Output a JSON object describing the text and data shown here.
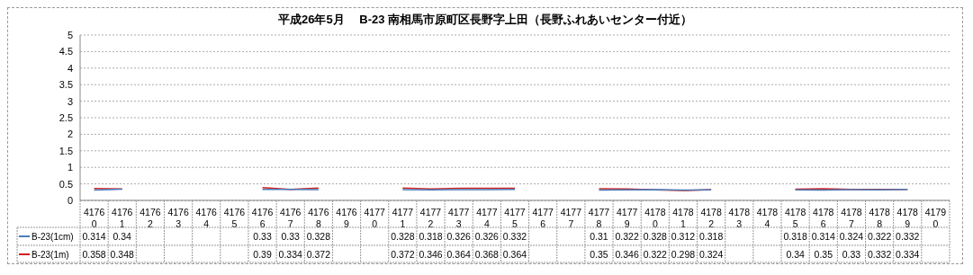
{
  "chart_data": {
    "type": "line",
    "title": "平成26年5月　 B-23 南相馬市原町区長野字上田（長野ふれあいセンター付近）",
    "categories": [
      "41760",
      "41761",
      "41762",
      "41763",
      "41764",
      "41765",
      "41766",
      "41767",
      "41768",
      "41769",
      "41770",
      "41771",
      "41772",
      "41773",
      "41774",
      "41775",
      "41776",
      "41777",
      "41778",
      "41779",
      "41780",
      "41781",
      "41782",
      "41783",
      "41784",
      "41785",
      "41786",
      "41787",
      "41788",
      "41789",
      "41790"
    ],
    "series": [
      {
        "name": "B-23(1cm)",
        "color": "#4a7ebb",
        "values": [
          0.314,
          0.34,
          null,
          null,
          null,
          null,
          0.33,
          0.33,
          0.328,
          null,
          null,
          0.328,
          0.318,
          0.326,
          0.326,
          0.332,
          null,
          null,
          0.31,
          0.322,
          0.328,
          0.312,
          0.318,
          null,
          null,
          0.318,
          0.314,
          0.324,
          0.322,
          0.332,
          null
        ]
      },
      {
        "name": "B-23(1m)",
        "color": "#d42020",
        "values": [
          0.358,
          0.348,
          null,
          null,
          null,
          null,
          0.39,
          0.334,
          0.372,
          null,
          null,
          0.372,
          0.346,
          0.364,
          0.368,
          0.364,
          null,
          null,
          0.35,
          0.346,
          0.322,
          0.298,
          0.324,
          null,
          null,
          0.34,
          0.35,
          0.33,
          0.332,
          0.334,
          null
        ]
      }
    ],
    "ylim": [
      0,
      5
    ],
    "yticks": [
      0,
      0.5,
      1,
      1.5,
      2,
      2.5,
      3,
      3.5,
      4,
      4.5,
      5
    ],
    "grid": "y",
    "legend": "bottom",
    "marker": "none",
    "line_style": "solid",
    "data_labels": true
  }
}
